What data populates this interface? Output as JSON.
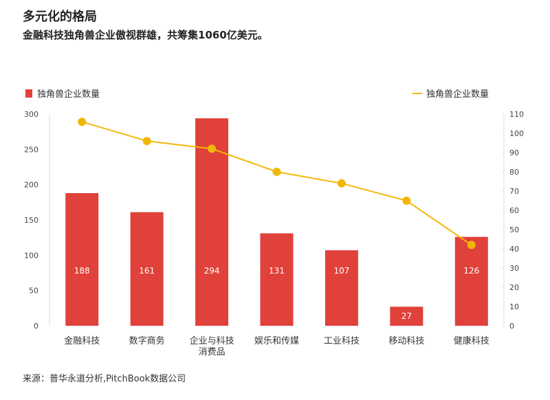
{
  "title": "多元化的格局",
  "subtitle": "金融科技独角兽企业傲视群雄，共筹集1060亿美元。",
  "source": "来源：普华永道分析,PitchBook数据公司",
  "chart_data": {
    "type": "bar+line",
    "categories": [
      "金融科技",
      "数字商务",
      "企业与科技消费品",
      "娱乐和传媒",
      "工业科技",
      "移动科技",
      "健康科技"
    ],
    "category_lines": [
      [
        "金融科技"
      ],
      [
        "数字商务"
      ],
      [
        "企业与科技",
        "消费品"
      ],
      [
        "娱乐和传媒"
      ],
      [
        "工业科技"
      ],
      [
        "移动科技"
      ],
      [
        "健康科技"
      ]
    ],
    "series": [
      {
        "name": "独角兽企业数量",
        "type": "bar",
        "axis": "left",
        "color": "#e0413a",
        "values": [
          188,
          161,
          294,
          131,
          107,
          27,
          126
        ],
        "labels": [
          "188",
          "161",
          "294",
          "131",
          "107",
          "27",
          "126"
        ]
      },
      {
        "name": "独角兽企业数量",
        "type": "line",
        "axis": "right",
        "color": "#f2b705",
        "values": [
          106,
          96,
          92,
          80,
          74,
          65,
          42
        ]
      }
    ],
    "left_axis": {
      "range": [
        0,
        300
      ],
      "ticks": [
        "0",
        "50",
        "100",
        "150",
        "200",
        "250",
        "300"
      ]
    },
    "right_axis": {
      "range": [
        0,
        110
      ],
      "ticks": [
        "0",
        "10",
        "20",
        "30",
        "40",
        "50",
        "60",
        "70",
        "80",
        "90",
        "100",
        "110"
      ]
    },
    "legend": [
      "top-left",
      "top-right"
    ],
    "grid": false
  }
}
